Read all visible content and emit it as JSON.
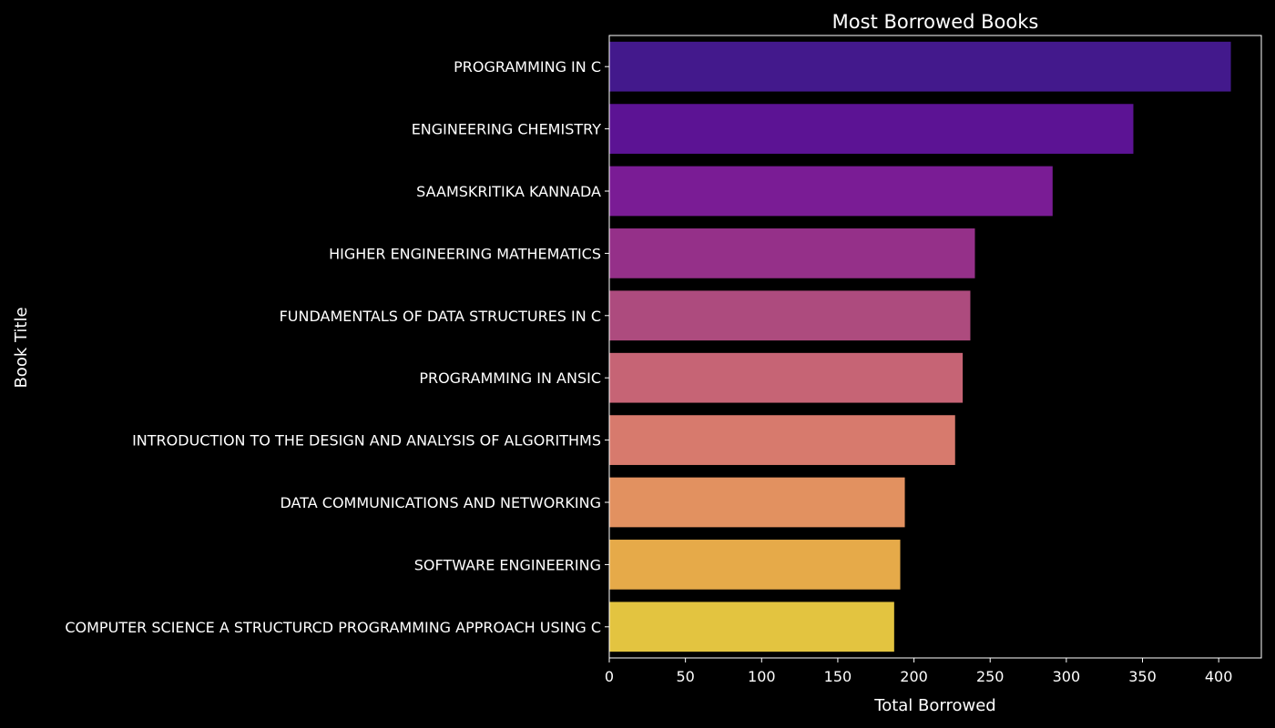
{
  "chart_data": {
    "type": "bar",
    "orientation": "horizontal",
    "title": "Most Borrowed Books",
    "xlabel": "Total Borrowed",
    "ylabel": "Book Title",
    "xlim": [
      0,
      428
    ],
    "xticks": [
      0,
      50,
      100,
      150,
      200,
      250,
      300,
      350,
      400
    ],
    "grid": false,
    "legend": "none",
    "categories": [
      "PROGRAMMING IN C",
      "ENGINEERING CHEMISTRY",
      "SAAMSKRITIKA KANNADA",
      "HIGHER ENGINEERING MATHEMATICS",
      "FUNDAMENTALS OF DATA STRUCTURES IN C",
      "PROGRAMMING IN ANSIC",
      "INTRODUCTION TO THE DESIGN AND ANALYSIS OF ALGORITHMS",
      "DATA COMMUNICATIONS AND NETWORKING",
      "SOFTWARE ENGINEERING",
      "COMPUTER SCIENCE A STRUCTURCD PROGRAMMING APPROACH USING C"
    ],
    "values": [
      408,
      344,
      291,
      240,
      237,
      232,
      227,
      194,
      191,
      187
    ],
    "colors": [
      "#43198c",
      "#5c1394",
      "#7a1c95",
      "#953089",
      "#ad4b7e",
      "#c66475",
      "#d77a6d",
      "#e29160",
      "#e6aa49",
      "#e3c440"
    ],
    "background": "#000000",
    "text_color": "#ffffff"
  }
}
